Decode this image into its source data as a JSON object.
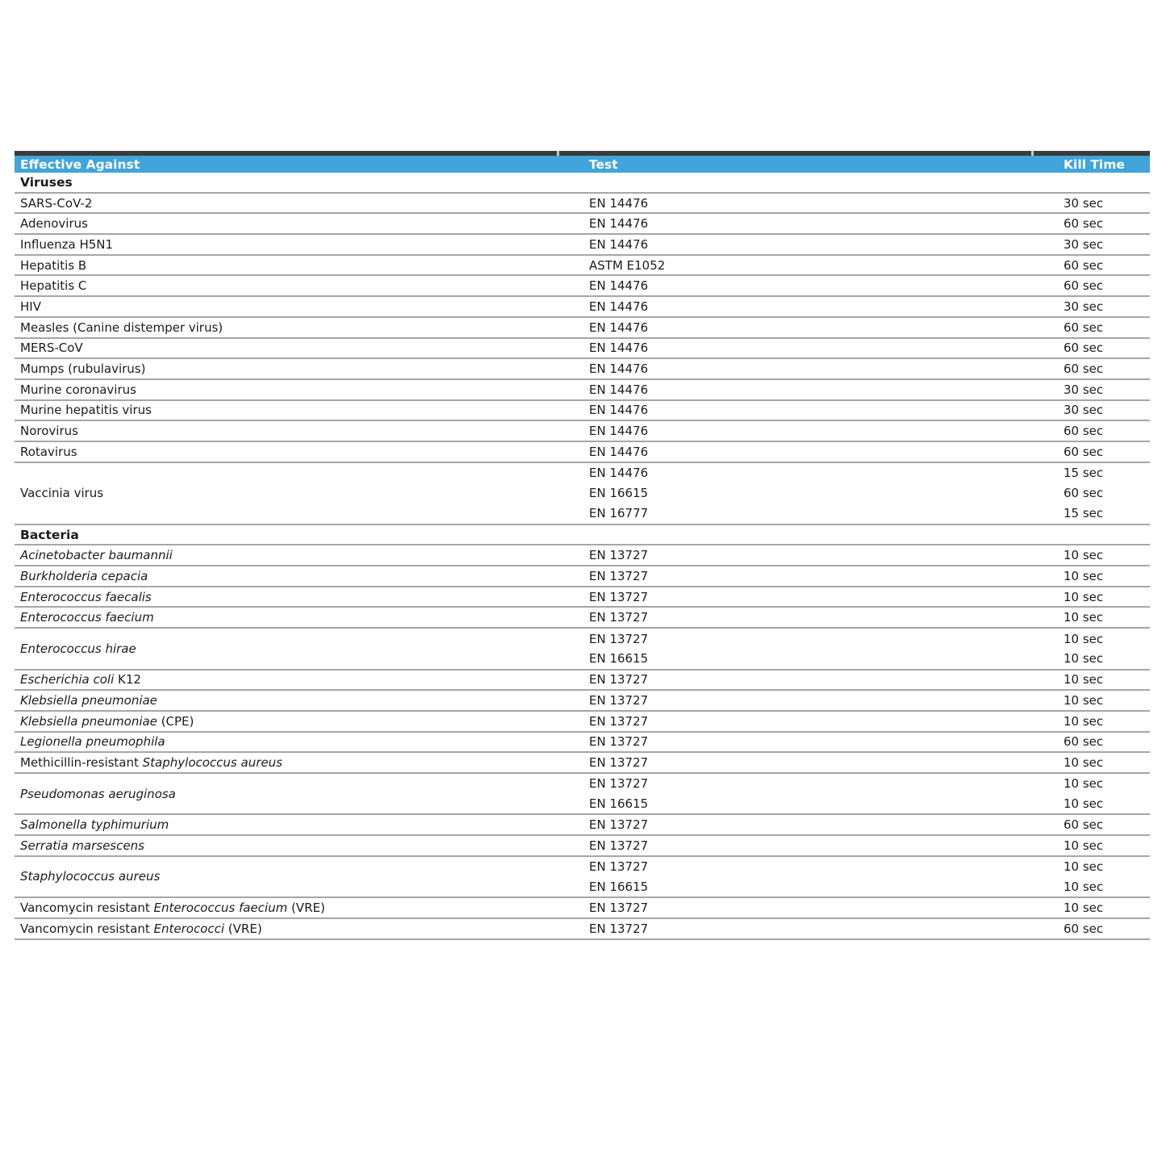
{
  "colors": {
    "header_bg": "#41A4DB",
    "header_text": "#FFFFFF",
    "top_bar": "#3B3B3B",
    "row_line": "#A6A6A6",
    "text": "#1C1C1C",
    "tick": "#C9C9C9"
  },
  "header": {
    "columns": [
      "Effective Against",
      "Test",
      "Kill Time"
    ]
  },
  "sections": [
    {
      "title": "Viruses",
      "rows": [
        {
          "parts": [
            {
              "text": "SARS-CoV-2",
              "italic": false
            }
          ],
          "tests": [
            {
              "test": "EN 14476",
              "kill_time": "30 sec"
            }
          ]
        },
        {
          "parts": [
            {
              "text": "Adenovirus",
              "italic": false
            }
          ],
          "tests": [
            {
              "test": "EN 14476",
              "kill_time": "60 sec"
            }
          ]
        },
        {
          "parts": [
            {
              "text": "Influenza H5N1",
              "italic": false
            }
          ],
          "tests": [
            {
              "test": "EN 14476",
              "kill_time": "30 sec"
            }
          ]
        },
        {
          "parts": [
            {
              "text": "Hepatitis B",
              "italic": false
            }
          ],
          "tests": [
            {
              "test": "ASTM E1052",
              "kill_time": "60 sec"
            }
          ]
        },
        {
          "parts": [
            {
              "text": "Hepatitis C",
              "italic": false
            }
          ],
          "tests": [
            {
              "test": "EN 14476",
              "kill_time": "60 sec"
            }
          ]
        },
        {
          "parts": [
            {
              "text": "HIV",
              "italic": false
            }
          ],
          "tests": [
            {
              "test": "EN 14476",
              "kill_time": "30 sec"
            }
          ]
        },
        {
          "parts": [
            {
              "text": "Measles (Canine distemper virus)",
              "italic": false
            }
          ],
          "tests": [
            {
              "test": "EN 14476",
              "kill_time": "60 sec"
            }
          ]
        },
        {
          "parts": [
            {
              "text": "MERS-CoV",
              "italic": false
            }
          ],
          "tests": [
            {
              "test": "EN 14476",
              "kill_time": "60 sec"
            }
          ]
        },
        {
          "parts": [
            {
              "text": "Mumps (rubulavirus)",
              "italic": false
            }
          ],
          "tests": [
            {
              "test": "EN 14476",
              "kill_time": "60 sec"
            }
          ]
        },
        {
          "parts": [
            {
              "text": "Murine coronavirus",
              "italic": false
            }
          ],
          "tests": [
            {
              "test": "EN 14476",
              "kill_time": "30 sec"
            }
          ]
        },
        {
          "parts": [
            {
              "text": "Murine hepatitis virus",
              "italic": false
            }
          ],
          "tests": [
            {
              "test": "EN 14476",
              "kill_time": "30 sec"
            }
          ]
        },
        {
          "parts": [
            {
              "text": "Norovirus",
              "italic": false
            }
          ],
          "tests": [
            {
              "test": "EN 14476",
              "kill_time": "60 sec"
            }
          ]
        },
        {
          "parts": [
            {
              "text": "Rotavirus",
              "italic": false
            }
          ],
          "tests": [
            {
              "test": "EN 14476",
              "kill_time": "60 sec"
            }
          ]
        },
        {
          "parts": [
            {
              "text": "Vaccinia virus",
              "italic": false
            }
          ],
          "tests": [
            {
              "test": "EN 14476",
              "kill_time": "15 sec"
            },
            {
              "test": "EN 16615",
              "kill_time": "60 sec"
            },
            {
              "test": "EN 16777",
              "kill_time": "15 sec"
            }
          ]
        }
      ]
    },
    {
      "title": "Bacteria",
      "rows": [
        {
          "parts": [
            {
              "text": "Acinetobacter baumannii",
              "italic": true
            }
          ],
          "tests": [
            {
              "test": "EN 13727",
              "kill_time": "10 sec"
            }
          ]
        },
        {
          "parts": [
            {
              "text": "Burkholderia cepacia",
              "italic": true
            }
          ],
          "tests": [
            {
              "test": "EN 13727",
              "kill_time": "10 sec"
            }
          ]
        },
        {
          "parts": [
            {
              "text": "Enterococcus faecalis",
              "italic": true
            }
          ],
          "tests": [
            {
              "test": "EN 13727",
              "kill_time": "10 sec"
            }
          ]
        },
        {
          "parts": [
            {
              "text": "Enterococcus faecium",
              "italic": true
            }
          ],
          "tests": [
            {
              "test": "EN 13727",
              "kill_time": "10 sec"
            }
          ]
        },
        {
          "parts": [
            {
              "text": "Enterococcus hirae",
              "italic": true
            }
          ],
          "tests": [
            {
              "test": "EN 13727",
              "kill_time": "10 sec"
            },
            {
              "test": "EN 16615",
              "kill_time": "10 sec"
            }
          ]
        },
        {
          "parts": [
            {
              "text": "Escherichia coli",
              "italic": true
            },
            {
              "text": " K12",
              "italic": false
            }
          ],
          "tests": [
            {
              "test": "EN 13727",
              "kill_time": "10 sec"
            }
          ]
        },
        {
          "parts": [
            {
              "text": "Klebsiella pneumoniae",
              "italic": true
            }
          ],
          "tests": [
            {
              "test": "EN 13727",
              "kill_time": "10 sec"
            }
          ]
        },
        {
          "parts": [
            {
              "text": "Klebsiella pneumoniae",
              "italic": true
            },
            {
              "text": " (CPE)",
              "italic": false
            }
          ],
          "tests": [
            {
              "test": "EN 13727",
              "kill_time": "10 sec"
            }
          ]
        },
        {
          "parts": [
            {
              "text": "Legionella pneumophila",
              "italic": true
            }
          ],
          "tests": [
            {
              "test": "EN 13727",
              "kill_time": "60 sec"
            }
          ]
        },
        {
          "parts": [
            {
              "text": "Methicillin-resistant ",
              "italic": false
            },
            {
              "text": "Staphylococcus aureus",
              "italic": true
            }
          ],
          "tests": [
            {
              "test": "EN 13727",
              "kill_time": "10 sec"
            }
          ]
        },
        {
          "parts": [
            {
              "text": "Pseudomonas aeruginosa",
              "italic": true
            }
          ],
          "tests": [
            {
              "test": "EN 13727",
              "kill_time": "10 sec"
            },
            {
              "test": "EN 16615",
              "kill_time": "10 sec"
            }
          ]
        },
        {
          "parts": [
            {
              "text": "Salmonella typhimurium",
              "italic": true
            }
          ],
          "tests": [
            {
              "test": "EN 13727",
              "kill_time": "60 sec"
            }
          ]
        },
        {
          "parts": [
            {
              "text": "Serratia marsescens",
              "italic": true
            }
          ],
          "tests": [
            {
              "test": "EN 13727",
              "kill_time": "10 sec"
            }
          ]
        },
        {
          "parts": [
            {
              "text": "Staphylococcus aureus",
              "italic": true
            }
          ],
          "tests": [
            {
              "test": "EN 13727",
              "kill_time": "10 sec"
            },
            {
              "test": "EN 16615",
              "kill_time": "10 sec"
            }
          ]
        },
        {
          "parts": [
            {
              "text": "Vancomycin resistant ",
              "italic": false
            },
            {
              "text": "Enterococcus faecium",
              "italic": true
            },
            {
              "text": " (VRE)",
              "italic": false
            }
          ],
          "tests": [
            {
              "test": "EN 13727",
              "kill_time": "10 sec"
            }
          ]
        },
        {
          "parts": [
            {
              "text": "Vancomycin resistant ",
              "italic": false
            },
            {
              "text": "Enterococci",
              "italic": true
            },
            {
              "text": " (VRE)",
              "italic": false
            }
          ],
          "tests": [
            {
              "test": "EN 13727",
              "kill_time": "60 sec"
            }
          ]
        }
      ]
    }
  ]
}
